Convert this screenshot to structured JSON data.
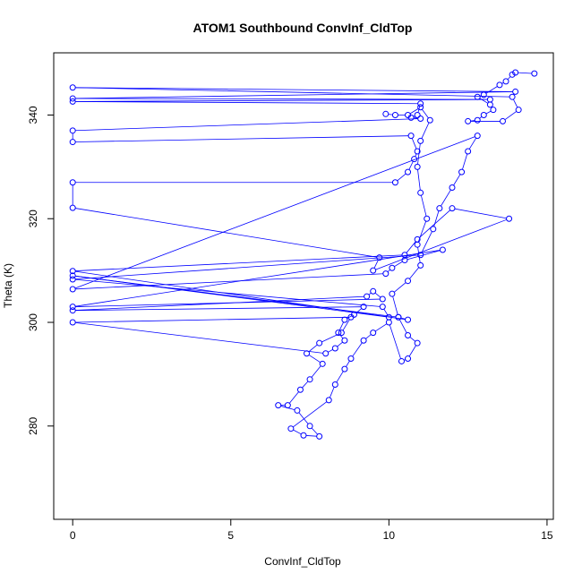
{
  "chart_data": {
    "type": "line",
    "title": "ATOM1 Southbound ConvInf_CldTop",
    "xlabel": "ConvInf_CldTop",
    "ylabel": "Theta (K)",
    "xlim": [
      -0.6,
      15.2
    ],
    "ylim": [
      262,
      352
    ],
    "x_ticks": [
      0,
      5,
      10,
      15
    ],
    "y_ticks": [
      280,
      300,
      320,
      340
    ],
    "grid": false,
    "legend": "none",
    "colors": {
      "series": "#0000ff",
      "axes": "#000000",
      "background": "#ffffff"
    },
    "series": [
      {
        "marker": "open-circle",
        "points": [
          [
            14.6,
            348.0
          ],
          [
            14.0,
            348.2
          ],
          [
            13.9,
            347.8
          ],
          [
            13.7,
            346.5
          ],
          [
            13.5,
            345.8
          ],
          [
            13.0,
            343.9
          ],
          [
            12.8,
            343.5
          ],
          [
            13.2,
            342.0
          ],
          [
            13.3,
            341.0
          ],
          [
            13.0,
            340.0
          ],
          [
            12.8,
            339.0
          ],
          [
            12.5,
            338.8
          ],
          [
            13.6,
            338.8
          ],
          [
            14.1,
            341.0
          ],
          [
            13.9,
            343.5
          ],
          [
            0.0,
            345.3
          ],
          [
            14.0,
            344.5
          ],
          [
            0.0,
            343.2
          ],
          [
            13.2,
            343.0
          ],
          [
            0.0,
            342.6
          ],
          [
            11.0,
            342.2
          ],
          [
            10.9,
            340.0
          ],
          [
            10.7,
            339.5
          ],
          [
            11.0,
            339.3
          ],
          [
            0.0,
            337.0
          ],
          [
            0.0,
            334.8
          ],
          [
            10.7,
            336.0
          ],
          [
            10.9,
            333.0
          ],
          [
            10.8,
            331.5
          ],
          [
            10.6,
            329.0
          ],
          [
            10.2,
            327.0
          ],
          [
            0.0,
            327.0
          ],
          [
            0.0,
            322.1
          ],
          [
            9.7,
            312.5
          ],
          [
            9.5,
            310.0
          ],
          [
            13.8,
            320.0
          ],
          [
            12.0,
            322.0
          ],
          [
            10.9,
            316.0
          ],
          [
            10.5,
            313.0
          ],
          [
            0.0,
            309.9
          ],
          [
            10.6,
            300.5
          ],
          [
            10.3,
            301.0
          ],
          [
            0.0,
            309.0
          ],
          [
            10.0,
            301.0
          ],
          [
            9.8,
            303.0
          ],
          [
            0.0,
            308.3
          ],
          [
            11.0,
            313.0
          ],
          [
            11.4,
            318.0
          ],
          [
            11.6,
            322.0
          ],
          [
            12.0,
            326.0
          ],
          [
            12.3,
            329.0
          ],
          [
            12.5,
            333.0
          ],
          [
            12.8,
            336.0
          ],
          [
            0.0,
            306.4
          ],
          [
            9.9,
            309.4
          ],
          [
            10.1,
            310.5
          ],
          [
            10.5,
            312.0
          ],
          [
            11.7,
            314.0
          ],
          [
            0.0,
            303.0
          ],
          [
            9.8,
            304.5
          ],
          [
            9.5,
            306.0
          ],
          [
            9.3,
            305.0
          ],
          [
            0.0,
            302.3
          ],
          [
            9.2,
            303.0
          ],
          [
            8.9,
            301.5
          ],
          [
            8.6,
            300.5
          ],
          [
            8.4,
            298.0
          ],
          [
            8.6,
            296.5
          ],
          [
            8.3,
            295.0
          ],
          [
            8.0,
            294.0
          ],
          [
            0.0,
            300.0
          ],
          [
            8.8,
            301.0
          ],
          [
            8.5,
            298.0
          ],
          [
            7.8,
            296.0
          ],
          [
            7.4,
            294.0
          ],
          [
            7.9,
            292.0
          ],
          [
            7.5,
            289.0
          ],
          [
            7.2,
            287.0
          ],
          [
            6.8,
            284.0
          ],
          [
            6.5,
            284.0
          ],
          [
            7.1,
            283.0
          ],
          [
            7.5,
            280.0
          ],
          [
            7.8,
            278.0
          ],
          [
            7.3,
            278.2
          ],
          [
            6.9,
            279.5
          ],
          [
            8.1,
            285.0
          ],
          [
            8.3,
            288.0
          ],
          [
            8.6,
            291.0
          ],
          [
            8.8,
            293.0
          ],
          [
            9.2,
            296.5
          ],
          [
            9.5,
            298.0
          ],
          [
            10.0,
            300.0
          ],
          [
            10.4,
            292.5
          ],
          [
            10.6,
            293.0
          ],
          [
            10.9,
            296.0
          ],
          [
            10.6,
            297.5
          ],
          [
            10.3,
            301.0
          ],
          [
            10.1,
            305.5
          ],
          [
            10.6,
            308.0
          ],
          [
            11.0,
            311.0
          ],
          [
            10.9,
            315.0
          ],
          [
            11.2,
            320.0
          ],
          [
            11.0,
            325.0
          ],
          [
            10.9,
            330.0
          ],
          [
            11.0,
            335.0
          ],
          [
            11.3,
            339.0
          ],
          [
            11.0,
            341.5
          ],
          [
            10.6,
            340.0
          ],
          [
            10.2,
            340.0
          ],
          [
            9.9,
            340.2
          ]
        ]
      }
    ]
  }
}
